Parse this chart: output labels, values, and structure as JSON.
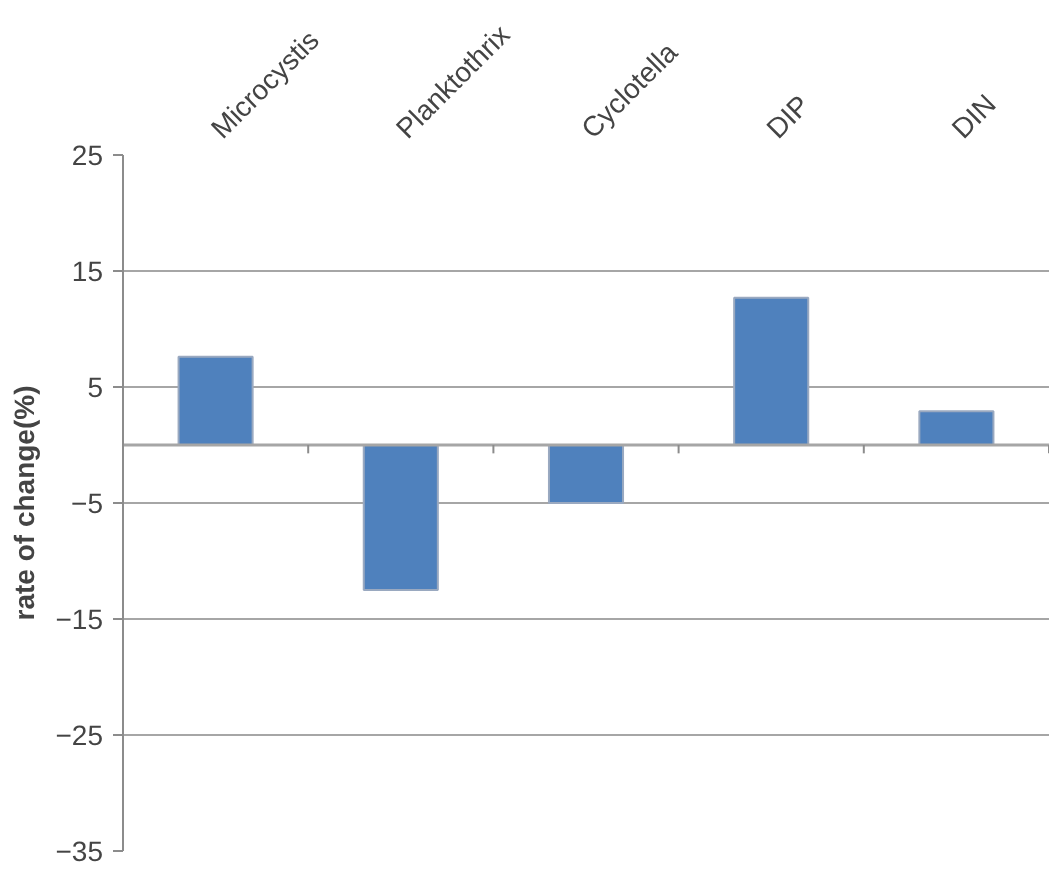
{
  "chart_data": {
    "type": "bar",
    "ylabel": "rate of change(%)",
    "categories": [
      "Microcystis",
      "Planktothrix",
      "Cyclotella",
      "DIP",
      "DIN"
    ],
    "values": [
      7.6,
      -12.5,
      -5.0,
      12.7,
      2.9
    ],
    "color": "#4f81bd",
    "ylim": [
      -35,
      25
    ],
    "yticks": [
      -35,
      -25,
      -15,
      -5,
      5,
      15,
      25
    ],
    "grid": "y"
  }
}
